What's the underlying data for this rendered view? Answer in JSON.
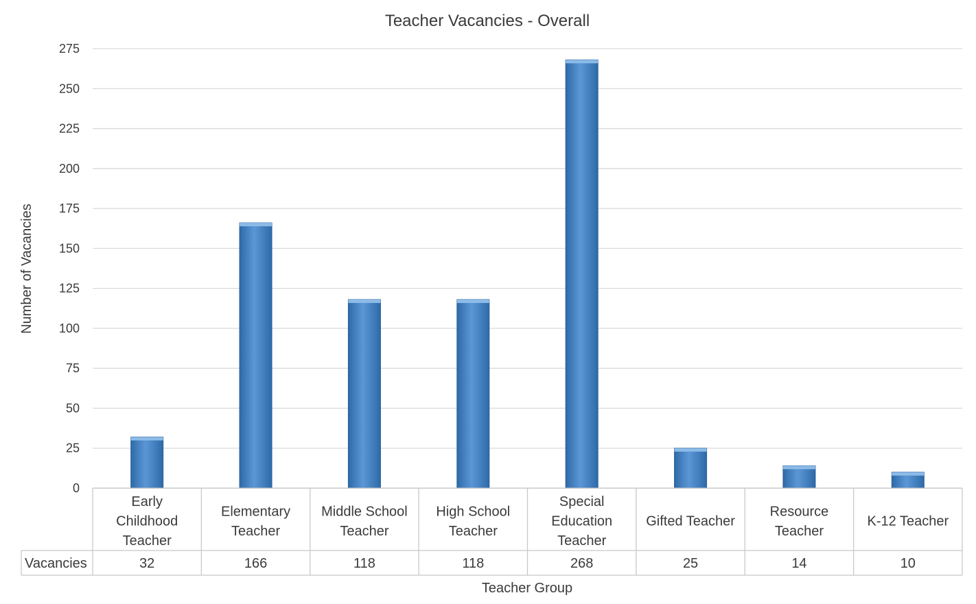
{
  "chart_data": {
    "type": "bar",
    "title": "Teacher Vacancies - Overall",
    "xlabel": "Teacher Group",
    "ylabel": "Number of Vacancies",
    "ylim": [
      0,
      275
    ],
    "yticks": [
      0,
      25,
      50,
      75,
      100,
      125,
      150,
      175,
      200,
      225,
      250,
      275
    ],
    "grid": true,
    "bar_color": "#4a86c8",
    "categories": [
      [
        "Early",
        "Childhood",
        "Teacher"
      ],
      [
        "Elementary",
        "Teacher"
      ],
      [
        "Middle School",
        "Teacher"
      ],
      [
        "High School",
        "Teacher"
      ],
      [
        "Special",
        "Education",
        "Teacher"
      ],
      [
        "Gifted Teacher"
      ],
      [
        "Resource",
        "Teacher"
      ],
      [
        "K-12 Teacher"
      ]
    ],
    "series": [
      {
        "name": "Vacancies",
        "values": [
          32,
          166,
          118,
          118,
          268,
          25,
          14,
          10
        ]
      }
    ],
    "data_table": {
      "row_label": "Vacancies",
      "values": [
        "32",
        "166",
        "118",
        "118",
        "268",
        "25",
        "14",
        "10"
      ]
    }
  }
}
